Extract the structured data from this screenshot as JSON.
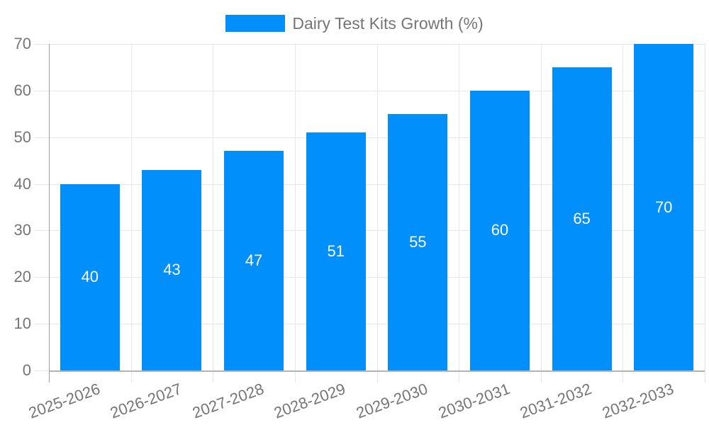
{
  "chart_data": {
    "type": "bar",
    "title": "Dairy Test Kits Growth (%)",
    "series_name": "Dairy Test Kits Growth (%)",
    "categories": [
      "2025-2026",
      "2026-2027",
      "2027-2028",
      "2028-2029",
      "2029-2030",
      "2030-2031",
      "2031-2032",
      "2032-2033"
    ],
    "values": [
      40,
      43,
      47,
      51,
      55,
      60,
      65,
      70
    ],
    "value_labels": [
      "40",
      "43",
      "47",
      "51",
      "55",
      "60",
      "65",
      "70"
    ],
    "xlabel": "",
    "ylabel": "",
    "ylim": [
      0,
      70
    ],
    "yticks": [
      0,
      10,
      20,
      30,
      40,
      50,
      60,
      70
    ],
    "grid": true,
    "legend_position": "top",
    "x_label_rotation": -20,
    "colors": {
      "bar_color": "#008FFB",
      "value_label_color": "#FFFFFF",
      "text_color": "#757575",
      "gridline_color": "#E7E7E7",
      "axis_line_color": "#9E9E9E",
      "baseline_color": "#B3B3B3"
    }
  }
}
